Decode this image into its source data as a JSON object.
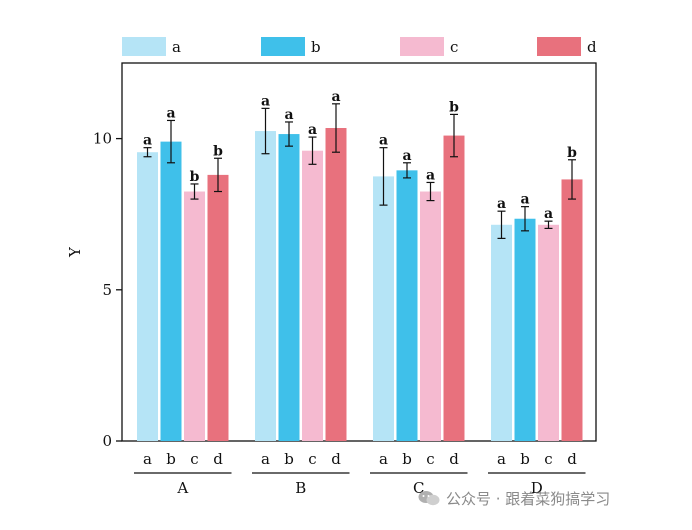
{
  "chart_data": {
    "type": "bar",
    "title": "",
    "xlabel": "",
    "ylabel": "Y",
    "ylim": [
      0,
      12.5
    ],
    "yticks": [
      0,
      5,
      10
    ],
    "grid": false,
    "legend_position": "top",
    "groups": [
      "A",
      "B",
      "C",
      "D"
    ],
    "series": [
      {
        "name": "a",
        "color": "#b5e4f6",
        "values": [
          9.55,
          10.25,
          8.75,
          7.15
        ],
        "errors": [
          0.15,
          0.75,
          0.95,
          0.45
        ],
        "sig": [
          "a",
          "a",
          "a",
          "a"
        ]
      },
      {
        "name": "b",
        "color": "#3fc0ea",
        "values": [
          9.9,
          10.15,
          8.95,
          7.35
        ],
        "errors": [
          0.7,
          0.4,
          0.25,
          0.4
        ],
        "sig": [
          "a",
          "a",
          "a",
          "a"
        ]
      },
      {
        "name": "c",
        "color": "#f5bad0",
        "values": [
          8.25,
          9.6,
          8.25,
          7.15
        ],
        "errors": [
          0.25,
          0.45,
          0.3,
          0.12
        ],
        "sig": [
          "b",
          "a",
          "a",
          "a"
        ]
      },
      {
        "name": "d",
        "color": "#e8717d",
        "values": [
          8.8,
          10.35,
          10.1,
          8.65
        ],
        "errors": [
          0.55,
          0.8,
          0.7,
          0.65
        ],
        "sig": [
          "b",
          "a",
          "b",
          "b"
        ]
      }
    ]
  },
  "watermark": {
    "text": "公众号 · 跟着菜狗搞学习",
    "icon": "wechat-icon"
  }
}
